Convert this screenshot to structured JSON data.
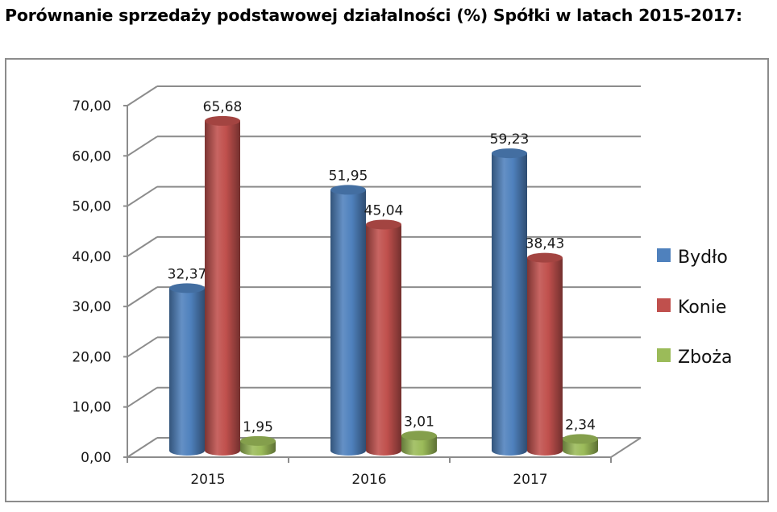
{
  "title": "Porównanie sprzedaży podstawowej działalności (%) Spółki w latach 2015-2017:",
  "chart_data": {
    "type": "bar",
    "style": "3d-cylinder",
    "title": "Porównanie sprzedaży podstawowej działalności (%) Spółki w latach 2015-2017:",
    "xlabel": "",
    "ylabel": "",
    "categories": [
      "2015",
      "2016",
      "2017"
    ],
    "series": [
      {
        "name": "Bydło",
        "color": "#4f81bd",
        "values": [
          32.37,
          51.95,
          59.23
        ],
        "labels": [
          "32,37",
          "51,95",
          "59,23"
        ]
      },
      {
        "name": "Konie",
        "color": "#c0504d",
        "values": [
          65.68,
          45.04,
          38.43
        ],
        "labels": [
          "65,68",
          "45,04",
          "38,43"
        ]
      },
      {
        "name": "Zboża",
        "color": "#9bbb59",
        "values": [
          1.95,
          3.01,
          2.34
        ],
        "labels": [
          "1,95",
          "3,01",
          "2,34"
        ]
      }
    ],
    "ylim": [
      0,
      70
    ],
    "yticks": [
      0,
      10,
      20,
      30,
      40,
      50,
      60,
      70
    ],
    "ytick_labels": [
      "0,00",
      "10,00",
      "20,00",
      "30,00",
      "40,00",
      "50,00",
      "60,00",
      "70,00"
    ],
    "grid": true,
    "legend_position": "right"
  }
}
